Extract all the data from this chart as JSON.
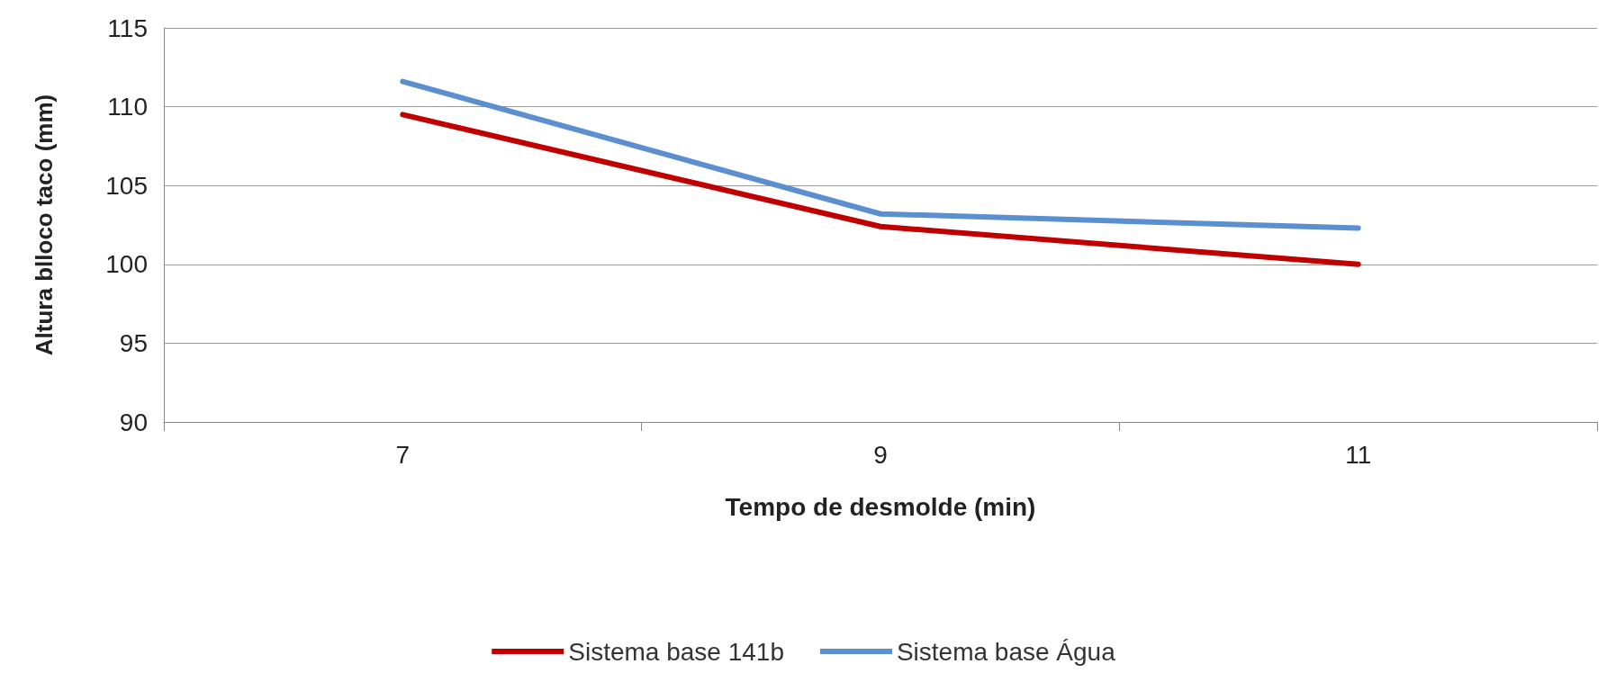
{
  "chart_data": {
    "type": "line",
    "xlabel": "Tempo de desmolde (min)",
    "ylabel": "Altura blloco taco (mm)",
    "categories": [
      "7",
      "9",
      "11"
    ],
    "series": [
      {
        "name": "Sistema base 141b",
        "color": "#c00000",
        "values": [
          109.5,
          102.4,
          100.0
        ]
      },
      {
        "name": "Sistema base Água",
        "color": "#5b8fd0",
        "values": [
          111.6,
          103.2,
          102.3
        ]
      }
    ],
    "ylim": [
      90,
      115
    ],
    "yticks": [
      90,
      95,
      100,
      105,
      110,
      115
    ],
    "grid": "y",
    "legend": "bottom",
    "marker": "none",
    "line_style": "solid"
  }
}
